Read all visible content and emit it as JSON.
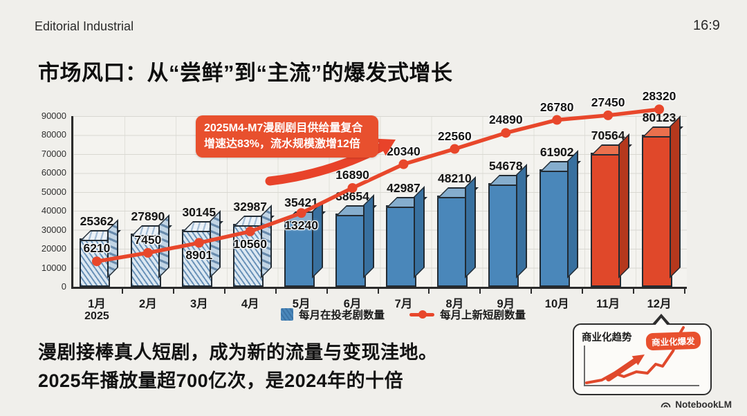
{
  "header": {
    "brand": "Editorial Industrial",
    "aspect_badge": "16:9"
  },
  "title": "市场风口：从“尝鲜”到“主流”的爆发式增长",
  "annotation": {
    "line1": "2025M4-M7漫剧剧目供给量复合",
    "line2": "增速达83%，流水规模激增12倍"
  },
  "chart_data": {
    "type": "bar+line",
    "categories": [
      "1月",
      "2月",
      "3月",
      "4月",
      "5月",
      "6月",
      "7月",
      "8月",
      "9月",
      "10月",
      "11月",
      "12月"
    ],
    "x_sub_label": {
      "index": 0,
      "text": "2025"
    },
    "series": [
      {
        "name": "每月在投老剧数量",
        "type": "bar",
        "values": [
          25362,
          27890,
          30145,
          32987,
          35421,
          38654,
          42987,
          48210,
          54678,
          61902,
          70564,
          80123
        ],
        "hatched_indexes": [
          0,
          1,
          2,
          3
        ],
        "highlight_indexes": [
          10,
          11
        ]
      },
      {
        "name": "每月上新短剧数量",
        "type": "line",
        "values": [
          6210,
          7450,
          8901,
          10560,
          13240,
          16890,
          20340,
          22560,
          24890,
          26780,
          27450,
          28320
        ]
      }
    ],
    "ylim": [
      0,
      90000
    ],
    "ytick_step": 10000,
    "grid": true,
    "legend_position": "bottom"
  },
  "footer": {
    "line1": "漫剧接棒真人短剧，成为新的流量与变现洼地。",
    "line2": "2025年播放量超700亿次，是2024年的十倍"
  },
  "inset": {
    "title": "商业化趋势",
    "badge": "商业化爆发"
  },
  "watermark": "NotebookLM",
  "colors": {
    "accent_red": "#e8502e",
    "bar_blue": "#4a87ba",
    "bar_red": "#e0482a",
    "line_red": "#e8472b",
    "background": "#f0efeb"
  }
}
